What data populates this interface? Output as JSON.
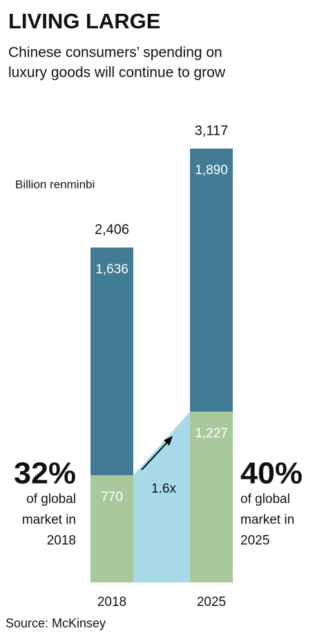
{
  "chart_data": {
    "type": "stacked-bar",
    "title": "LIVING LARGE",
    "subtitle": [
      "Chinese consumers’ spending on",
      "luxury goods will continue to grow"
    ],
    "unit_label": "Billion renminbi",
    "categories": [
      "2018",
      "2025"
    ],
    "series": [
      {
        "color": "#a9c89c",
        "values": [
          770,
          1227
        ]
      },
      {
        "color": "#417b94",
        "values": [
          1636,
          1890
        ]
      }
    ],
    "totals": [
      2406,
      3117
    ],
    "value_labels": [
      [
        "770",
        "1,227"
      ],
      [
        "1,636",
        "1,890"
      ]
    ],
    "total_labels": [
      "2,406",
      "3,117"
    ],
    "growth_color": "#a8dbe7",
    "growth_label": "1.6x",
    "annotations": [
      {
        "big": "32%",
        "lines": [
          "of global",
          "market in",
          "2018"
        ]
      },
      {
        "big": "40%",
        "lines": [
          "of global",
          "market in",
          "2025"
        ]
      }
    ],
    "source": "Source: McKinsey"
  }
}
